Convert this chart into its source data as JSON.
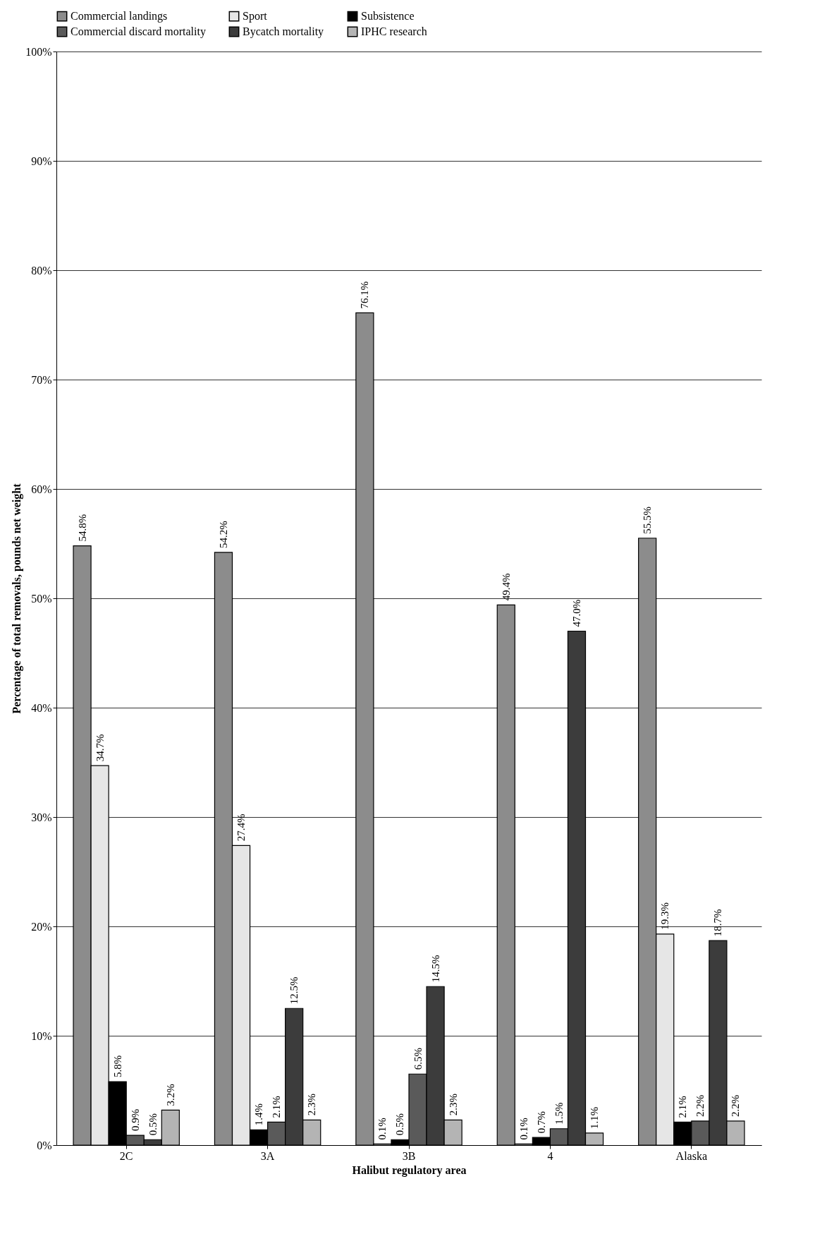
{
  "chart_data": {
    "type": "bar",
    "xlabel": "Halibut regulatory area",
    "ylabel": "Percentage of total removals, pounds net weight",
    "categories": [
      "2C",
      "3A",
      "3B",
      "4",
      "Alaska"
    ],
    "series": [
      {
        "name": "Commercial landings",
        "color": "#8c8c8c",
        "values": [
          54.8,
          54.2,
          76.1,
          49.4,
          55.5
        ],
        "value_labels": [
          "54.8%",
          "54.2%",
          "76.1%",
          "49.4%",
          "55.5%"
        ]
      },
      {
        "name": "Sport",
        "color": "#e6e6e6",
        "values": [
          34.7,
          27.4,
          0.1,
          0.1,
          19.3
        ],
        "value_labels": [
          "34.7%",
          "27.4%",
          "0.1%",
          "0.1%",
          "19.3%"
        ]
      },
      {
        "name": "Subsistence",
        "color": "#000000",
        "values": [
          5.8,
          1.4,
          0.5,
          0.7,
          2.1
        ],
        "value_labels": [
          "5.8%",
          "1.4%",
          "0.5%",
          "0.7%",
          "2.1%"
        ]
      },
      {
        "name": "Commercial discard mortality",
        "color": "#5a5a5a",
        "values": [
          0.9,
          2.1,
          6.5,
          1.5,
          2.2
        ],
        "value_labels": [
          "0.9%",
          "2.1%",
          "6.5%",
          "1.5%",
          "2.2%"
        ]
      },
      {
        "name": "Bycatch mortality",
        "color": "#3c3c3c",
        "values": [
          0.5,
          12.5,
          14.5,
          47.0,
          18.7
        ],
        "value_labels": [
          "0.5%",
          "12.5%",
          "14.5%",
          "47.0%",
          "18.7%"
        ]
      },
      {
        "name": "IPHC research",
        "color": "#b4b4b4",
        "values": [
          3.2,
          2.3,
          2.3,
          1.1,
          2.2
        ],
        "value_labels": [
          "3.2%",
          "2.3%",
          "2.3%",
          "1.1%",
          "2.2%"
        ]
      }
    ],
    "ylim": [
      0,
      100
    ],
    "yticks": [
      {
        "value": 0,
        "label": "0%"
      },
      {
        "value": 10,
        "label": "10%"
      },
      {
        "value": 20,
        "label": "20%"
      },
      {
        "value": 30,
        "label": "30%"
      },
      {
        "value": 40,
        "label": "40%"
      },
      {
        "value": 50,
        "label": "50%"
      },
      {
        "value": 60,
        "label": "60%"
      },
      {
        "value": 70,
        "label": "70%"
      },
      {
        "value": 80,
        "label": "80%"
      },
      {
        "value": 90,
        "label": "90%"
      },
      {
        "value": 100,
        "label": "100%"
      }
    ],
    "grid": "y",
    "legend": "top"
  }
}
